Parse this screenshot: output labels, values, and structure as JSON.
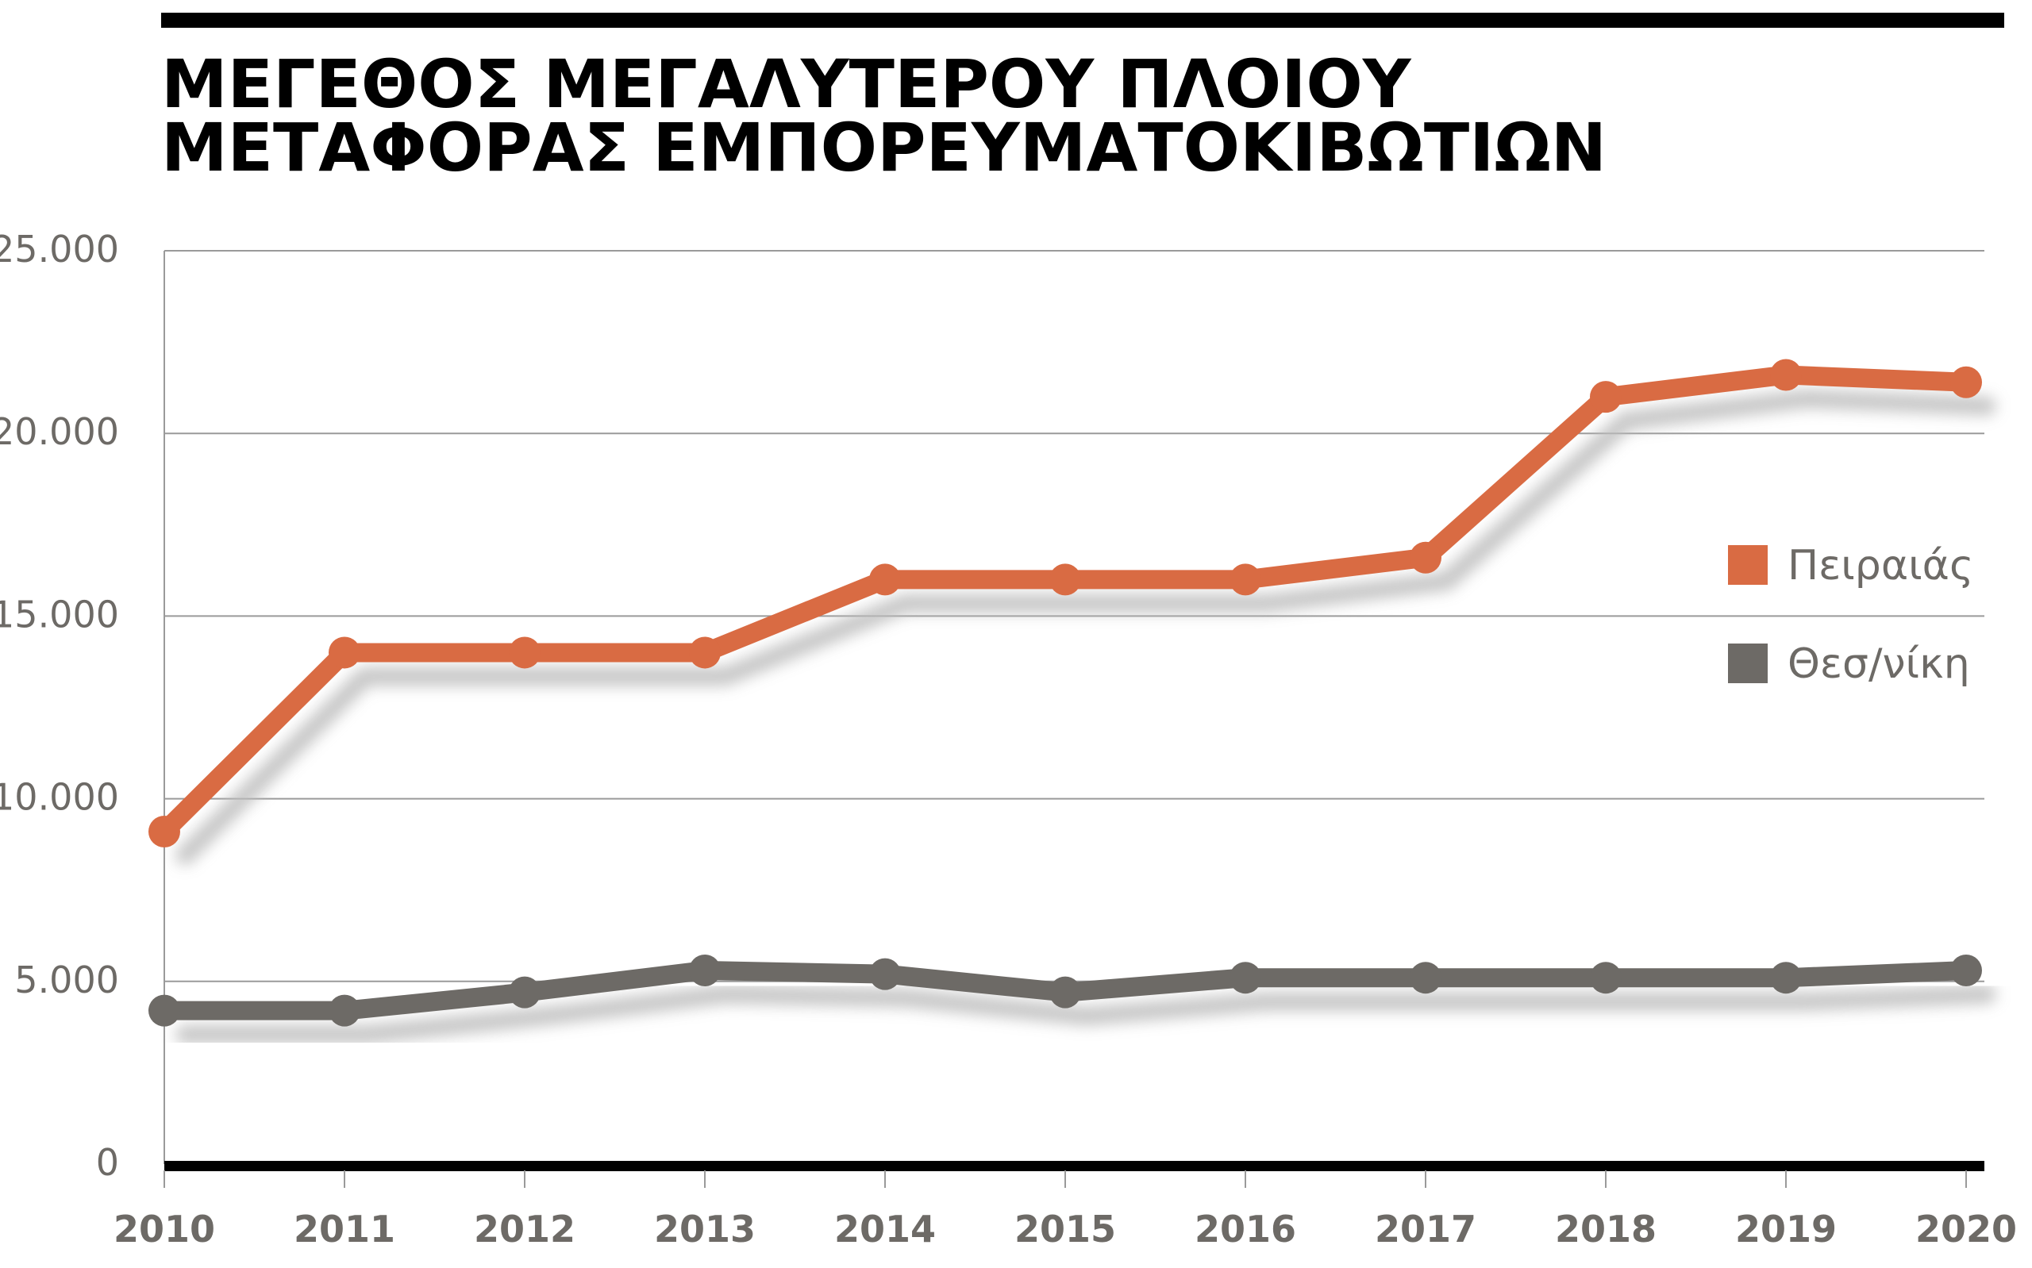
{
  "chart_data": {
    "type": "line",
    "title_lines": [
      "ΜΕΓΕΘΟΣ ΜΕΓΑΛΥΤΕΡΟΥ ΠΛΟΙΟΥ",
      "ΜΕΤΑΦΟΡΑΣ ΕΜΠΟΡΕΥΜΑΤΟΚΙΒΩΤΙΩΝ"
    ],
    "xlabel": "",
    "ylabel": "",
    "categories": [
      "2010",
      "2011",
      "2012",
      "2013",
      "2014",
      "2015",
      "2016",
      "2017",
      "2018",
      "2019",
      "2020"
    ],
    "y_ticks": [
      {
        "value": 0,
        "label": "0"
      },
      {
        "value": 5000,
        "label": "5.000"
      },
      {
        "value": 10000,
        "label": "10.000"
      },
      {
        "value": 15000,
        "label": "15.000"
      },
      {
        "value": 20000,
        "label": "20.000"
      },
      {
        "value": 25000,
        "label": "25.000"
      }
    ],
    "ylim": [
      0,
      25000
    ],
    "grid": true,
    "legend_position": "right",
    "series": [
      {
        "name": "Πειραιάς",
        "color": "#d96b43",
        "values": [
          9100,
          14000,
          14000,
          14000,
          16000,
          16000,
          16000,
          16600,
          21000,
          21600,
          21400
        ]
      },
      {
        "name": "Θεσ/νίκη",
        "color": "#6d6a66",
        "values": [
          4200,
          4200,
          4700,
          5300,
          5200,
          4700,
          5100,
          5100,
          5100,
          5100,
          5300
        ]
      }
    ]
  },
  "colors": {
    "grid": "#9a9a9a",
    "axis": "#000000",
    "tick_text": "#6d6a66",
    "shadow": "#bdbdbd"
  }
}
